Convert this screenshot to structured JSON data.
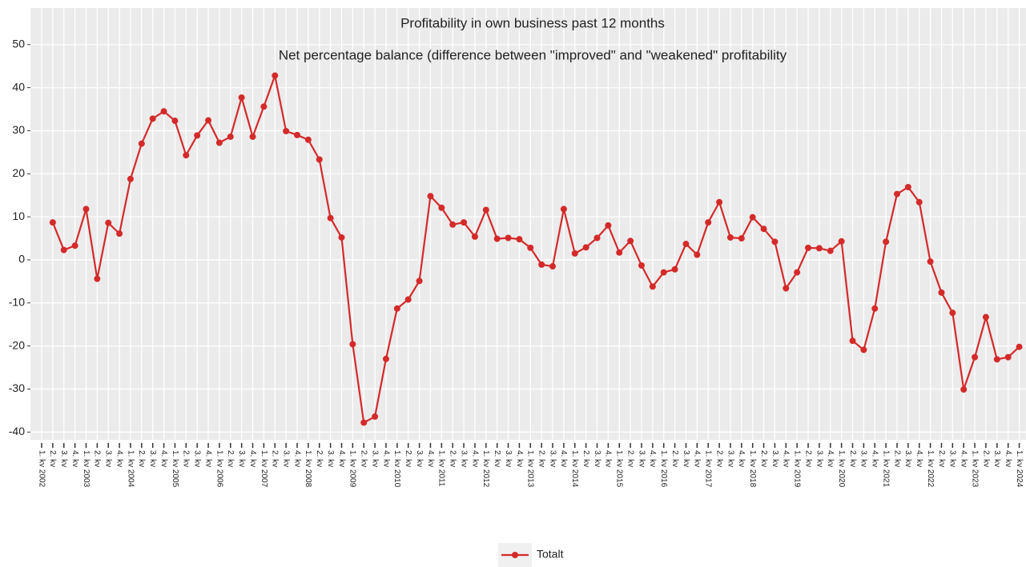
{
  "chart_data": {
    "type": "line",
    "title": "Profitability in own business past 12 months",
    "subtitle": "Net percentage balance (difference between \"improved\" and \"weakened\" profitability",
    "categories": [
      "1. kv 2002",
      "2. kv",
      "3. kv",
      "4. kv",
      "1. kv 2003",
      "2. kv",
      "3. kv",
      "4. kv",
      "1. kv 2004",
      "2. kv",
      "3. kv",
      "4. kv",
      "1. kv 2005",
      "2. kv",
      "3. kv",
      "4. kv",
      "1. kv 2006",
      "2. kv",
      "3. kv",
      "4. kv",
      "1. kv 2007",
      "2. kv",
      "3. kv",
      "4. kv",
      "1. kv 2008",
      "2. kv",
      "3. kv",
      "4. kv",
      "1. kv 2009",
      "2. kv",
      "3. kv",
      "4. kv",
      "1. kv 2010",
      "2. kv",
      "3. kv",
      "4. kv",
      "1. kv 2011",
      "2. kv",
      "3. kv",
      "4. kv",
      "1. kv 2012",
      "2. kv",
      "3. kv",
      "4. kv",
      "1. kv 2013",
      "2. kv",
      "3. kv",
      "4. kv",
      "1. kv 2014",
      "2. kv",
      "3. kv",
      "4. kv",
      "1. kv 2015",
      "2. kv",
      "3. kv",
      "4. kv",
      "1. kv 2016",
      "2. kv",
      "3. kv",
      "4. kv",
      "1. kv 2017",
      "2. kv",
      "3. kv",
      "4. kv",
      "1. kv 2018",
      "2. kv",
      "3. kv",
      "4. kv",
      "1. kv 2019",
      "2. kv",
      "3. kv",
      "4. kv",
      "1. kv 2020",
      "2. kv",
      "3. kv",
      "4. kv",
      "1. kv 2021",
      "2. kv",
      "3. kv",
      "4. kv",
      "1. kv 2022",
      "2. kv",
      "3. kv",
      "4. kv",
      "1. kv 2023",
      "2. kv",
      "3. kv",
      "4. kv",
      "1. kv 2024"
    ],
    "series": [
      {
        "name": "Totalt",
        "color": "#d42a2a",
        "values": [
          null,
          8.7,
          2.3,
          3.3,
          11.8,
          -4.4,
          8.6,
          6.1,
          18.8,
          27.0,
          32.8,
          34.5,
          32.3,
          24.3,
          28.9,
          32.4,
          27.2,
          28.6,
          37.7,
          28.6,
          35.6,
          42.8,
          29.9,
          29.0,
          27.9,
          23.3,
          9.7,
          5.2,
          -19.6,
          -37.8,
          -36.4,
          -23.0,
          -11.3,
          -9.2,
          -4.9,
          14.8,
          12.1,
          8.2,
          8.7,
          5.4,
          11.6,
          4.9,
          5.1,
          4.8,
          2.8,
          -1.1,
          -1.5,
          11.8,
          1.5,
          2.9,
          5.1,
          8.0,
          1.7,
          4.4,
          -1.3,
          -6.2,
          -2.9,
          -2.2,
          3.7,
          1.2,
          8.7,
          13.4,
          5.2,
          5.0,
          9.9,
          7.2,
          4.2,
          -6.6,
          -2.9,
          2.8,
          2.7,
          2.1,
          4.3,
          -18.8,
          -20.9,
          -11.3,
          4.2,
          15.3,
          16.9,
          13.4,
          -0.4,
          -7.6,
          -12.3,
          -30.1,
          -22.6,
          -13.3,
          -23.1,
          -22.6,
          -20.2
        ]
      }
    ],
    "ylim": [
      -41.8,
      58.5
    ],
    "yticks": [
      -40,
      -30,
      -20,
      -10,
      0,
      10,
      20,
      30,
      40,
      50
    ],
    "grid": true,
    "legend": "bottom"
  }
}
